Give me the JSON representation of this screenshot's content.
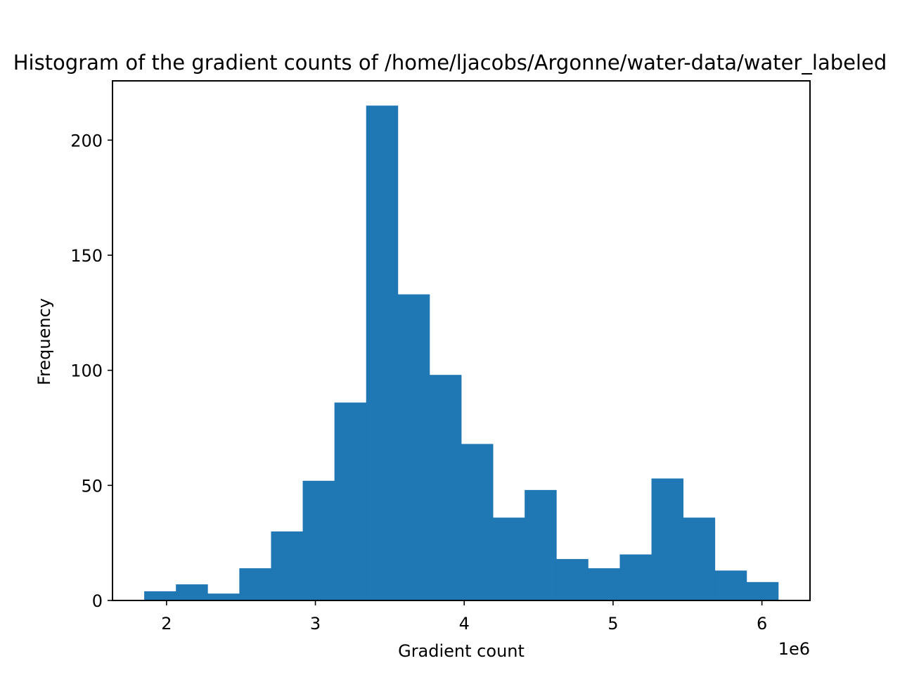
{
  "chart_data": {
    "type": "bar",
    "title": "Histogram of the gradient counts of /home/ljacobs/Argonne/water-data/water_labeled",
    "xlabel": "Gradient count",
    "ylabel": "Frequency",
    "x_offset_label": "1e6",
    "bin_edges": [
      1.85,
      2.063,
      2.276,
      2.489,
      2.702,
      2.915,
      3.128,
      3.341,
      3.554,
      3.767,
      3.98,
      4.193,
      4.406,
      4.619,
      4.832,
      5.045,
      5.258,
      5.471,
      5.684,
      5.897,
      6.11
    ],
    "values": [
      4,
      7,
      3,
      14,
      30,
      52,
      86,
      215,
      133,
      98,
      68,
      36,
      48,
      18,
      14,
      20,
      53,
      36,
      13,
      8
    ],
    "xlim": [
      1.637,
      6.323
    ],
    "ylim": [
      0,
      225.75
    ],
    "x_ticks": [
      {
        "value": 2,
        "label": "2"
      },
      {
        "value": 3,
        "label": "3"
      },
      {
        "value": 4,
        "label": "4"
      },
      {
        "value": 5,
        "label": "5"
      },
      {
        "value": 6,
        "label": "6"
      }
    ],
    "y_ticks": [
      {
        "value": 0,
        "label": "0"
      },
      {
        "value": 50,
        "label": "50"
      },
      {
        "value": 100,
        "label": "100"
      },
      {
        "value": 150,
        "label": "150"
      },
      {
        "value": 200,
        "label": "200"
      }
    ],
    "bar_color": "#1f77b4",
    "grid": false,
    "legend": "none"
  }
}
